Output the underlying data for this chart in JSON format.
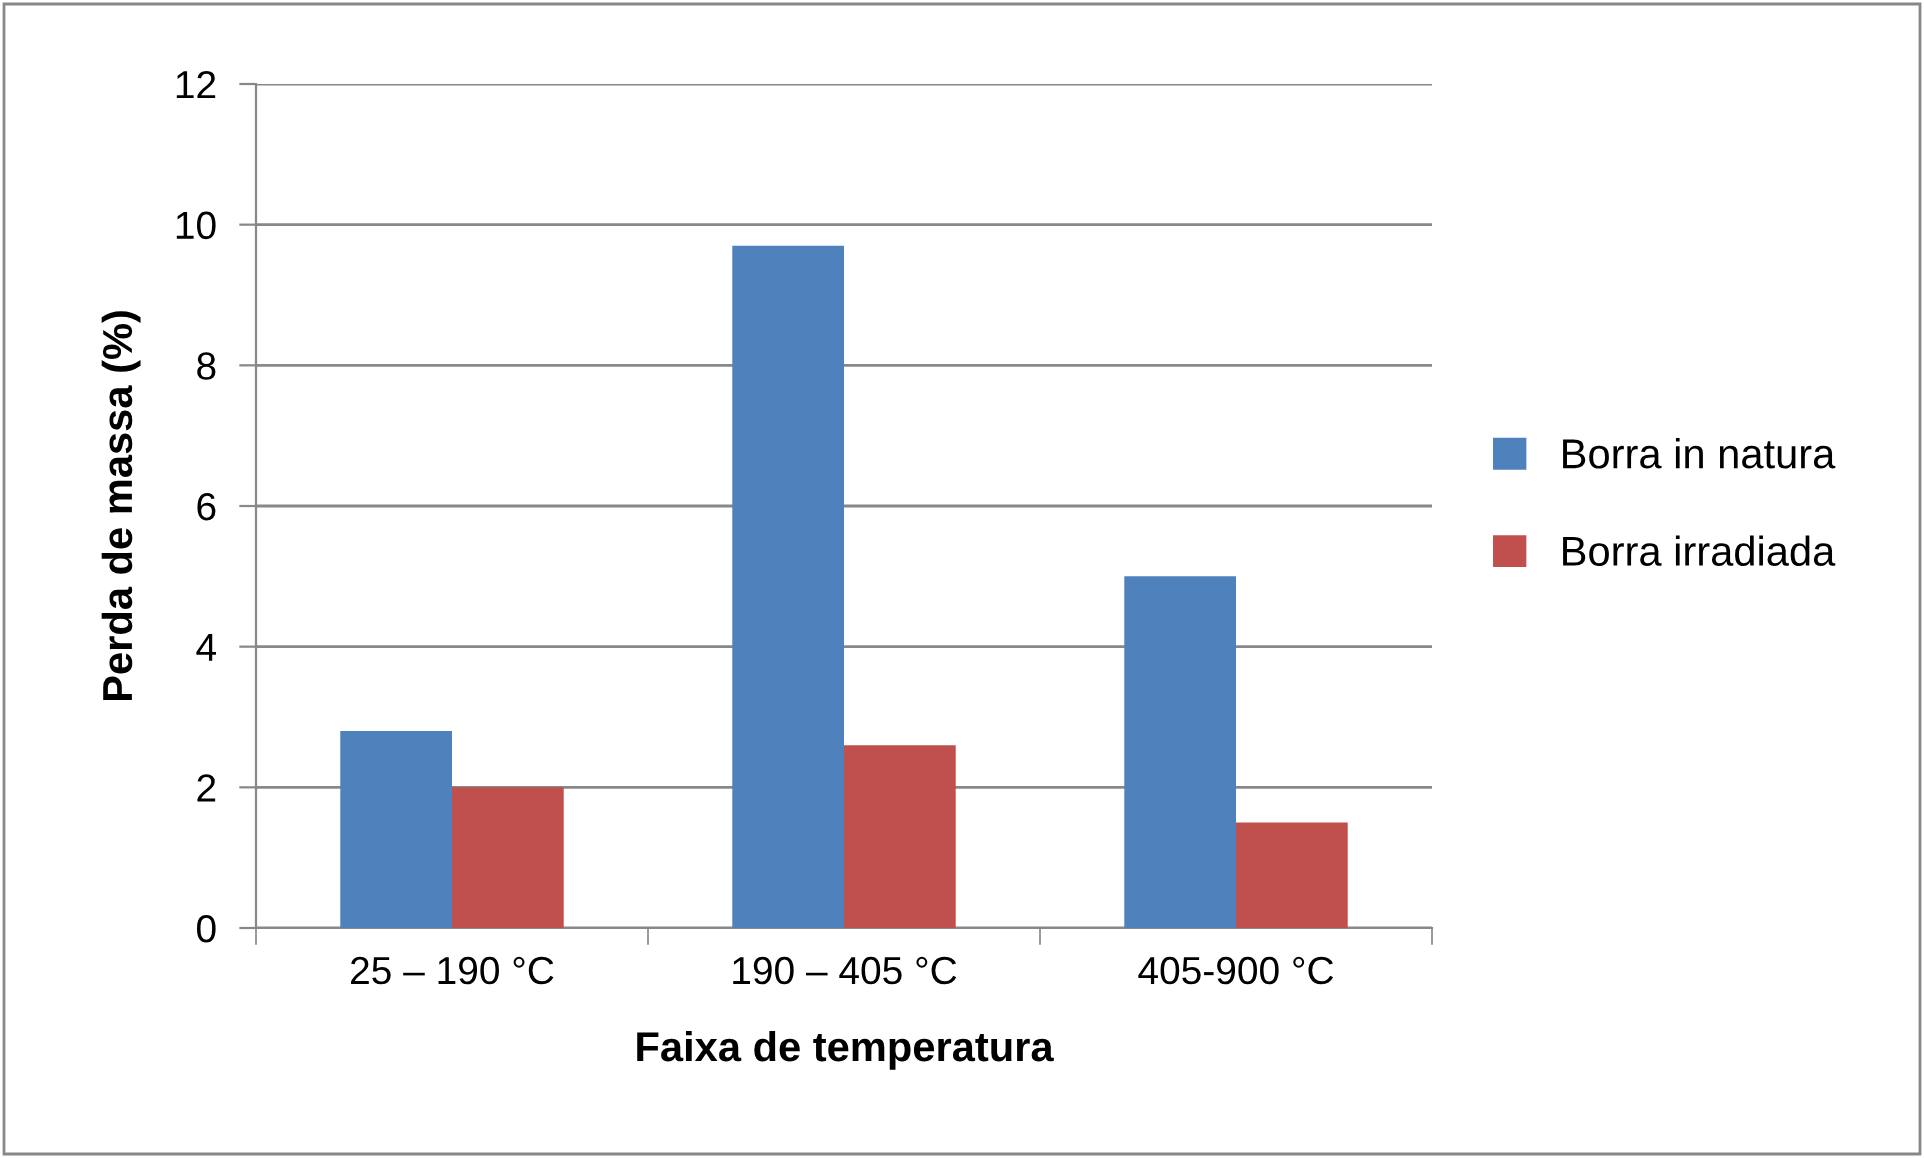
{
  "chart_data": {
    "type": "bar",
    "xlabel": "Faixa de temperatura",
    "ylabel": "Perda de massa (%)",
    "categories": [
      "25 – 190 °C",
      "190 – 405 °C",
      "405-900 °C"
    ],
    "series": [
      {
        "name": "Borra in natura",
        "color": "#4f81bd",
        "values": [
          2.8,
          9.7,
          5.0
        ]
      },
      {
        "name": "Borra irradiada",
        "color": "#c0504d",
        "values": [
          2.0,
          2.6,
          1.5
        ]
      }
    ],
    "ylim": [
      0,
      12
    ],
    "yticks": [
      0,
      2,
      4,
      6,
      8,
      10,
      12
    ],
    "grid": "y",
    "legend": "right"
  }
}
